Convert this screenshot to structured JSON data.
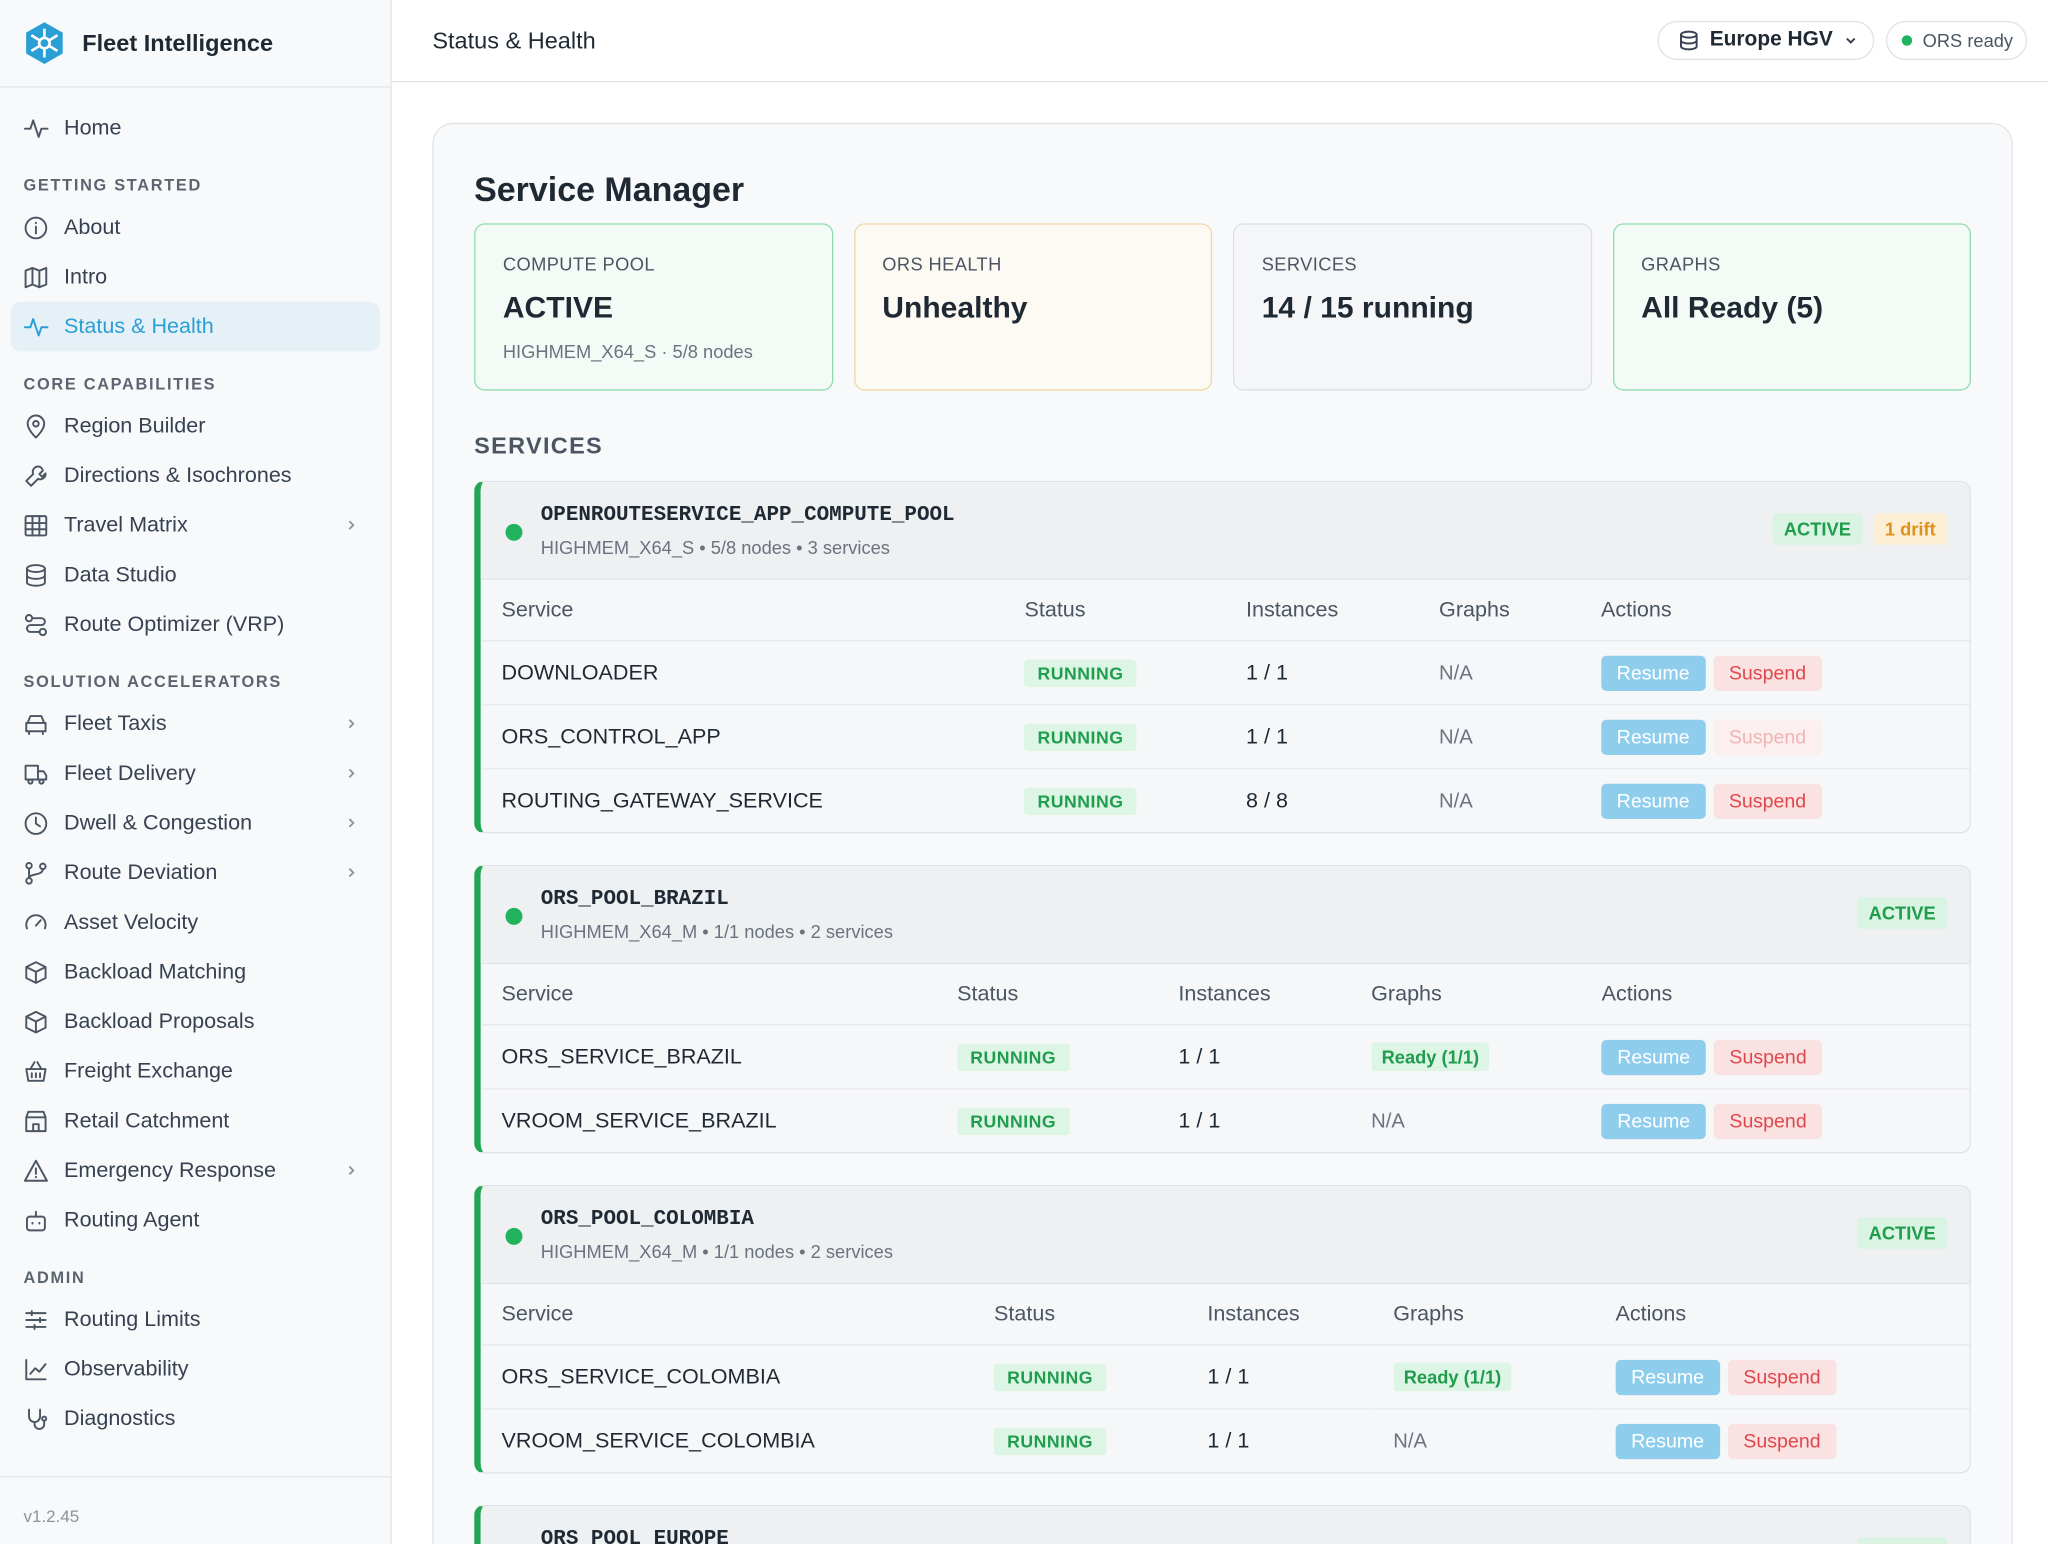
{
  "sidebar": {
    "brand": "Fleet Intelligence",
    "sections": [
      {
        "heading": null,
        "items": [
          {
            "label": "Home",
            "icon": "pulse"
          }
        ]
      },
      {
        "heading": "GETTING STARTED",
        "items": [
          {
            "label": "About",
            "icon": "info"
          },
          {
            "label": "Intro",
            "icon": "map"
          },
          {
            "label": "Status & Health",
            "icon": "pulse",
            "active": true
          }
        ]
      },
      {
        "heading": "CORE CAPABILITIES",
        "items": [
          {
            "label": "Region Builder",
            "icon": "pin"
          },
          {
            "label": "Directions & Isochrones",
            "icon": "wrench"
          },
          {
            "label": "Travel Matrix",
            "icon": "grid",
            "has_children": true
          },
          {
            "label": "Data Studio",
            "icon": "db"
          },
          {
            "label": "Route Optimizer (VRP)",
            "icon": "route"
          }
        ]
      },
      {
        "heading": "SOLUTION ACCELERATORS",
        "items": [
          {
            "label": "Fleet Taxis",
            "icon": "car",
            "has_children": true
          },
          {
            "label": "Fleet Delivery",
            "icon": "truck",
            "has_children": true
          },
          {
            "label": "Dwell & Congestion",
            "icon": "clock",
            "has_children": true
          },
          {
            "label": "Route Deviation",
            "icon": "fork",
            "has_children": true
          },
          {
            "label": "Asset Velocity",
            "icon": "gauge"
          },
          {
            "label": "Backload Matching",
            "icon": "box"
          },
          {
            "label": "Backload Proposals",
            "icon": "box"
          },
          {
            "label": "Freight Exchange",
            "icon": "basket"
          },
          {
            "label": "Retail Catchment",
            "icon": "store"
          },
          {
            "label": "Emergency Response",
            "icon": "warn",
            "has_children": true
          },
          {
            "label": "Routing Agent",
            "icon": "bot"
          }
        ]
      },
      {
        "heading": "ADMIN",
        "items": [
          {
            "label": "Routing Limits",
            "icon": "sliders"
          },
          {
            "label": "Observability",
            "icon": "chart"
          },
          {
            "label": "Diagnostics",
            "icon": "steth"
          }
        ]
      }
    ],
    "version": "v1.2.45"
  },
  "header": {
    "title": "Status & Health",
    "region": "Europe HGV",
    "status": "ORS ready"
  },
  "main": {
    "title": "Service Manager",
    "cards": [
      {
        "label": "COMPUTE POOL",
        "value": "ACTIVE",
        "sub": "HIGHMEM_X64_S · 5/8 nodes",
        "tone": "green"
      },
      {
        "label": "ORS HEALTH",
        "value": "Unhealthy",
        "tone": "amber"
      },
      {
        "label": "SERVICES",
        "value": "14 / 15 running",
        "tone": "grey"
      },
      {
        "label": "GRAPHS",
        "value": "All Ready (5)",
        "tone": "green"
      }
    ],
    "services_heading": "SERVICES",
    "columns": [
      "Service",
      "Status",
      "Instances",
      "Graphs",
      "Actions"
    ],
    "actions": [
      "Resume",
      "Suspend"
    ],
    "pools": [
      {
        "name": "OPENROUTESERVICE_APP_COMPUTE_POOL",
        "meta": "HIGHMEM_X64_S • 5/8 nodes • 3 services",
        "badges": [
          {
            "text": "ACTIVE",
            "tone": "green"
          },
          {
            "text": "1 drift",
            "tone": "amber"
          }
        ],
        "rows": [
          {
            "service": "DOWNLOADER",
            "status": "RUNNING",
            "instances": "1 / 1",
            "graphs": "N/A"
          },
          {
            "service": "ORS_CONTROL_APP",
            "status": "RUNNING",
            "instances": "1 / 1",
            "graphs": "N/A",
            "suspend_disabled": true
          },
          {
            "service": "ROUTING_GATEWAY_SERVICE",
            "status": "RUNNING",
            "instances": "8 / 8",
            "graphs": "N/A"
          }
        ]
      },
      {
        "name": "ORS_POOL_BRAZIL",
        "meta": "HIGHMEM_X64_M • 1/1 nodes • 2 services",
        "badges": [
          {
            "text": "ACTIVE",
            "tone": "green"
          }
        ],
        "rows": [
          {
            "service": "ORS_SERVICE_BRAZIL",
            "status": "RUNNING",
            "instances": "1 / 1",
            "graphs": "Ready (1/1)",
            "graphs_badge": true
          },
          {
            "service": "VROOM_SERVICE_BRAZIL",
            "status": "RUNNING",
            "instances": "1 / 1",
            "graphs": "N/A"
          }
        ]
      },
      {
        "name": "ORS_POOL_COLOMBIA",
        "meta": "HIGHMEM_X64_M • 1/1 nodes • 2 services",
        "badges": [
          {
            "text": "ACTIVE",
            "tone": "green"
          }
        ],
        "rows": [
          {
            "service": "ORS_SERVICE_COLOMBIA",
            "status": "RUNNING",
            "instances": "1 / 1",
            "graphs": "Ready (1/1)",
            "graphs_badge": true
          },
          {
            "service": "VROOM_SERVICE_COLOMBIA",
            "status": "RUNNING",
            "instances": "1 / 1",
            "graphs": "N/A"
          }
        ]
      },
      {
        "name": "ORS_POOL_EUROPE",
        "meta": null,
        "badges": [
          {
            "text": "ACTIVE",
            "tone": "green"
          }
        ],
        "rows": []
      }
    ]
  }
}
